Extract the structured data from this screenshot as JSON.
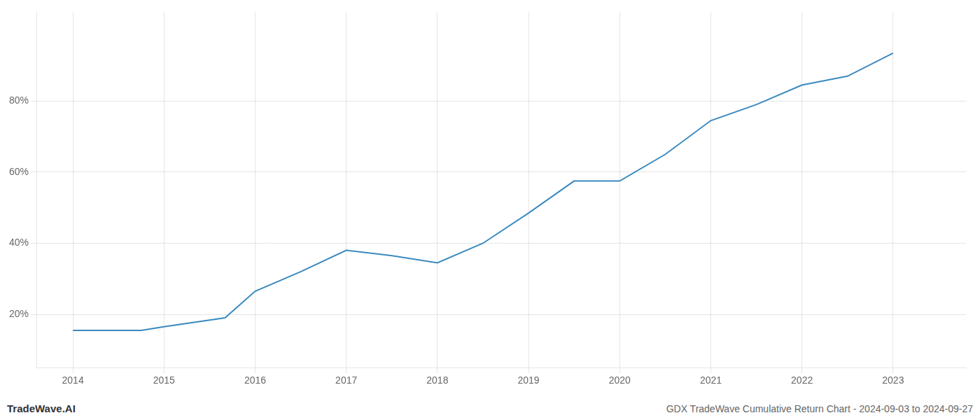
{
  "chart_data": {
    "type": "line",
    "title": "GDX TradeWave Cumulative Return Chart - 2024-09-03 to 2024-09-27",
    "annotations": [
      "TradeWave.AI"
    ],
    "x": [
      2014.0,
      2014.75,
      2015.0,
      2015.67,
      2016.0,
      2016.5,
      2017.0,
      2017.5,
      2018.0,
      2018.5,
      2019.0,
      2019.5,
      2020.0,
      2020.5,
      2021.0,
      2021.5,
      2022.0,
      2022.5,
      2023.0
    ],
    "values": [
      15.5,
      15.5,
      16.5,
      19.0,
      26.5,
      32.0,
      38.0,
      36.5,
      34.5,
      40.0,
      48.5,
      57.5,
      57.5,
      65.0,
      74.5,
      79.0,
      84.5,
      87.0,
      93.5
    ],
    "color": "#3a8abf",
    "xlim": [
      2013.6,
      2023.8
    ],
    "xticks": [
      2014,
      2015,
      2016,
      2017,
      2018,
      2019,
      2020,
      2021,
      2022,
      2023
    ],
    "ylim": [
      5,
      105
    ],
    "yticks": [
      {
        "value": 20,
        "label": "20%"
      },
      {
        "value": 40,
        "label": "40%"
      },
      {
        "value": 60,
        "label": "60%"
      },
      {
        "value": 80,
        "label": "80%"
      }
    ],
    "grid": true
  }
}
